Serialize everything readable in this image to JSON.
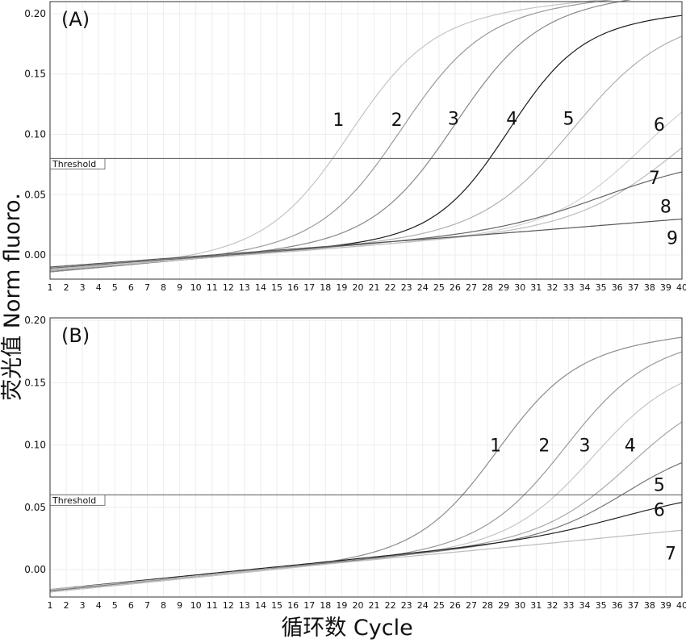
{
  "ylabel": "荧光值 Norm fluoro.",
  "xlabel": "循环数 Cycle",
  "chart_data": [
    {
      "type": "line",
      "panel_label": "(A)",
      "x_ticks": [
        1,
        2,
        3,
        4,
        5,
        6,
        7,
        8,
        9,
        10,
        11,
        12,
        13,
        14,
        15,
        16,
        17,
        18,
        19,
        20,
        21,
        22,
        23,
        24,
        25,
        26,
        27,
        28,
        29,
        30,
        31,
        32,
        33,
        34,
        35,
        36,
        37,
        38,
        39,
        40
      ],
      "xlim": [
        1,
        40
      ],
      "ylim": [
        -0.02,
        0.21
      ],
      "y_ticks": [
        "0.00",
        "0.05",
        "0.10",
        "0.15",
        "0.20"
      ],
      "grid": true,
      "threshold": {
        "label": "Threshold",
        "value": 0.08
      },
      "series": [
        {
          "name": "1",
          "base": -0.014,
          "slope": 0.0012,
          "amp": 0.185,
          "mid": 19.5,
          "k": 0.4,
          "color": "#c4c4c4"
        },
        {
          "name": "2",
          "base": -0.014,
          "slope": 0.0012,
          "amp": 0.185,
          "mid": 22.7,
          "k": 0.4,
          "color": "#9a9a9a"
        },
        {
          "name": "3",
          "base": -0.014,
          "slope": 0.0012,
          "amp": 0.185,
          "mid": 26.0,
          "k": 0.4,
          "color": "#888888"
        },
        {
          "name": "4",
          "base": -0.013,
          "slope": 0.0011,
          "amp": 0.17,
          "mid": 29.3,
          "k": 0.45,
          "color": "#1a1a1a"
        },
        {
          "name": "5",
          "base": -0.013,
          "slope": 0.0011,
          "amp": 0.165,
          "mid": 33.3,
          "k": 0.36,
          "color": "#b0b0b0"
        },
        {
          "name": "6",
          "base": -0.012,
          "slope": 0.001,
          "amp": 0.13,
          "mid": 37.6,
          "k": 0.36,
          "color": "#d2d2d2"
        },
        {
          "name": "7",
          "base": -0.012,
          "slope": 0.001,
          "amp": 0.12,
          "mid": 39.8,
          "k": 0.32,
          "color": "#bdbdbd"
        },
        {
          "name": "8",
          "base": -0.011,
          "slope": 0.001,
          "amp": 0.05,
          "mid": 35.0,
          "k": 0.3,
          "color": "#666666"
        },
        {
          "name": "9",
          "base": -0.01,
          "slope": 0.001,
          "amp": 0.001,
          "mid": 35.0,
          "k": 0.3,
          "color": "#555555"
        }
      ],
      "curve_labels": [
        {
          "text": "1",
          "x": 18.8,
          "y": 0.107
        },
        {
          "text": "2",
          "x": 22.4,
          "y": 0.107
        },
        {
          "text": "3",
          "x": 25.9,
          "y": 0.108
        },
        {
          "text": "4",
          "x": 29.5,
          "y": 0.108
        },
        {
          "text": "5",
          "x": 33.0,
          "y": 0.108
        },
        {
          "text": "6",
          "x": 38.6,
          "y": 0.103
        },
        {
          "text": "7",
          "x": 38.3,
          "y": 0.059
        },
        {
          "text": "8",
          "x": 39.0,
          "y": 0.035
        },
        {
          "text": "9",
          "x": 39.4,
          "y": 0.009
        }
      ]
    },
    {
      "type": "line",
      "panel_label": "(B)",
      "x_ticks": [
        1,
        2,
        3,
        4,
        5,
        6,
        7,
        8,
        9,
        10,
        11,
        12,
        13,
        14,
        15,
        16,
        17,
        18,
        19,
        20,
        21,
        22,
        23,
        24,
        25,
        26,
        27,
        28,
        29,
        30,
        31,
        32,
        33,
        34,
        35,
        36,
        37,
        38,
        39,
        40
      ],
      "xlim": [
        1,
        40
      ],
      "ylim": [
        -0.022,
        0.202
      ],
      "y_ticks": [
        "0.00",
        "0.05",
        "0.10",
        "0.15",
        "0.20"
      ],
      "grid": true,
      "threshold": {
        "label": "Threshold",
        "value": 0.06
      },
      "series": [
        {
          "name": "1",
          "base": -0.018,
          "slope": 0.0013,
          "amp": 0.155,
          "mid": 28.6,
          "k": 0.42,
          "color": "#8c8c8c"
        },
        {
          "name": "2",
          "base": -0.018,
          "slope": 0.0013,
          "amp": 0.15,
          "mid": 32.8,
          "k": 0.4,
          "color": "#9a9a9a"
        },
        {
          "name": "3",
          "base": -0.018,
          "slope": 0.0013,
          "amp": 0.13,
          "mid": 34.5,
          "k": 0.4,
          "color": "#c6c6c6"
        },
        {
          "name": "4",
          "base": -0.017,
          "slope": 0.0013,
          "amp": 0.11,
          "mid": 36.8,
          "k": 0.38,
          "color": "#a8a8a8"
        },
        {
          "name": "5",
          "base": -0.017,
          "slope": 0.0013,
          "amp": 0.065,
          "mid": 36.5,
          "k": 0.4,
          "color": "#777777"
        },
        {
          "name": "6",
          "base": -0.016,
          "slope": 0.0013,
          "amp": 0.024,
          "mid": 36.0,
          "k": 0.35,
          "color": "#222222"
        },
        {
          "name": "7",
          "base": -0.016,
          "slope": 0.0012,
          "amp": 0.001,
          "mid": 36.0,
          "k": 0.35,
          "color": "#bbbbbb"
        }
      ],
      "curve_labels": [
        {
          "text": "1",
          "x": 28.5,
          "y": 0.095
        },
        {
          "text": "2",
          "x": 31.5,
          "y": 0.095
        },
        {
          "text": "3",
          "x": 34.0,
          "y": 0.095
        },
        {
          "text": "4",
          "x": 36.8,
          "y": 0.095
        },
        {
          "text": "5",
          "x": 38.6,
          "y": 0.063
        },
        {
          "text": "6",
          "x": 38.6,
          "y": 0.043
        },
        {
          "text": "7",
          "x": 39.3,
          "y": 0.008
        }
      ]
    }
  ]
}
